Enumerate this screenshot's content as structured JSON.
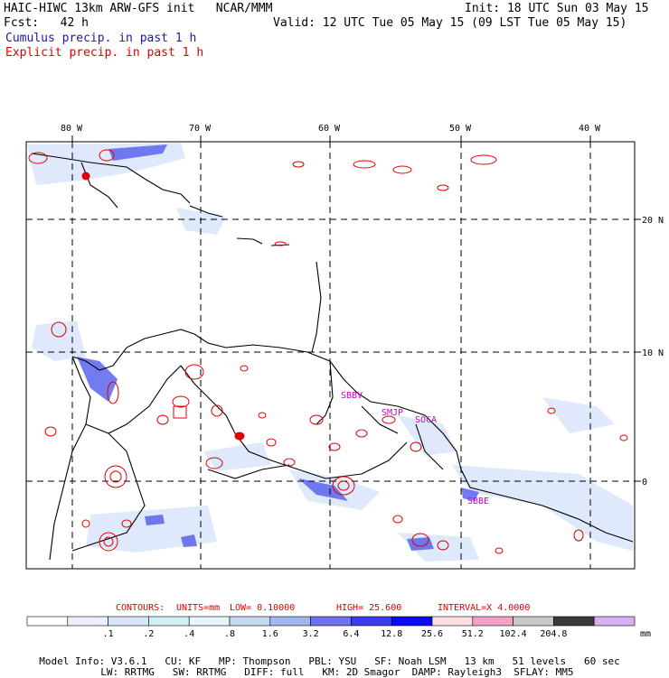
{
  "header": {
    "title": "HAIC-HIWC 13km ARW-GFS init   NCAR/MMM",
    "init": "Init: 18 UTC Sun 03 May 15",
    "fcst": "Fcst:   42 h",
    "valid": "Valid: 12 UTC Tue 05 May 15 (09 LST Tue 05 May 15)",
    "cumulus_label": "Cumulus precip. in past 1 h",
    "explicit_label": "Explicit precip. in past 1 h"
  },
  "colors": {
    "cumulus": "#1a1aa6",
    "explicit": "#e00000",
    "contour": "#e00000",
    "coast": "#000000"
  },
  "map": {
    "lon_labels": [
      "80 W",
      "70 W",
      "60 W",
      "50 W",
      "40 W"
    ],
    "lat_labels": [
      "20 N",
      "10 N",
      "0"
    ],
    "station_labels": [
      "SBBV",
      "SMJP",
      "SOCA",
      "SBBE"
    ]
  },
  "contours": {
    "prefix": "CONTOURS:",
    "units": "UNITS=mm",
    "low": "LOW=  0.10000",
    "high": "HIGH=  25.600",
    "interval": "INTERVAL=X  4.0000"
  },
  "colorbar": {
    "colors": [
      "#ffffff",
      "#eeeeff",
      "#d8e6fa",
      "#d0f0f5",
      "#e6f6fa",
      "#c6d8f4",
      "#a0b8f0",
      "#7070f0",
      "#3c3cf0",
      "#0a0af8",
      "#fae0e0",
      "#f4a0c4",
      "#c8c8c8",
      "#3a3a3a",
      "#d8b0f4"
    ],
    "tick_labels": [
      ".1",
      ".2",
      ".4",
      ".8",
      "1.6",
      "3.2",
      "6.4",
      "12.8",
      "25.6",
      "51.2",
      "102.4",
      "204.8"
    ],
    "unit": "mm"
  },
  "footer": {
    "line1": [
      "Model Info: V3.6.1",
      "CU: KF",
      "MP: Thompson",
      "PBL: YSU",
      "SF: Noah LSM",
      "13 km",
      "51 levels",
      "60 sec"
    ],
    "line2": [
      "LW: RRTMG",
      "SW: RRTMG",
      "DIFF: full",
      "KM: 2D Smagor",
      "DAMP: Rayleigh3",
      "SFLAY: MM5"
    ]
  }
}
